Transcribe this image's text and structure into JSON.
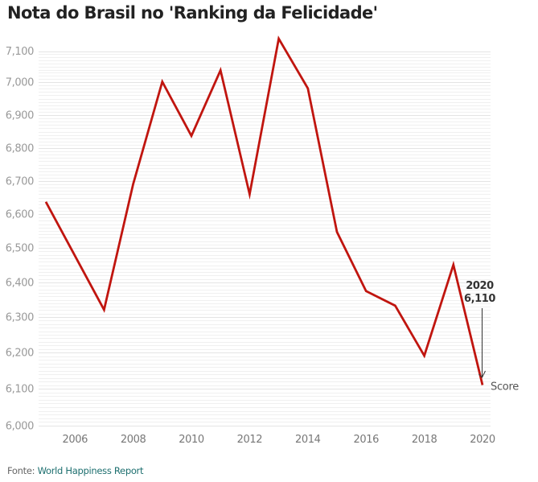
{
  "title": "Nota do Brasil no 'Ranking da Felicidade'",
  "footer": {
    "label": "Fonte:",
    "source": "World Happiness Report"
  },
  "colors": {
    "line": "#c0150f",
    "title": "#222222",
    "tick_label": "#999999",
    "x_tick_label": "#777777",
    "grid_major": "#e4e4e4",
    "grid_minor": "#f0f0f0",
    "source_link": "#1d6f6f",
    "annotation": "#333333"
  },
  "chart_data": {
    "type": "line",
    "title": "Nota do Brasil no 'Ranking da Felicidade'",
    "xlabel": "",
    "ylabel": "",
    "series": [
      {
        "name": "Score",
        "x": [
          2005,
          2007,
          2008,
          2009,
          2010,
          2011,
          2012,
          2013,
          2014,
          2015,
          2016,
          2017,
          2018,
          2019,
          2020
        ],
        "values": [
          6637,
          6321,
          6691,
          7001,
          6837,
          7038,
          6660,
          7140,
          6981,
          6547,
          6375,
          6333,
          6191,
          6451,
          6110
        ]
      }
    ],
    "xlim": [
      2005,
      2020
    ],
    "ylim": [
      6000,
      7140
    ],
    "x_ticks": [
      "2006",
      "2008",
      "2010",
      "2012",
      "2014",
      "2016",
      "2018",
      "2020"
    ],
    "y_ticks": [
      "6,000",
      "6,100",
      "6,200",
      "6,300",
      "6,400",
      "6,500",
      "6,600",
      "6,700",
      "6,800",
      "6,900",
      "7,000",
      "7,100"
    ],
    "grid": true,
    "minor_grid_step": 10,
    "series_label": "Score",
    "annotation": {
      "year": "2020",
      "value": "6,110"
    }
  }
}
